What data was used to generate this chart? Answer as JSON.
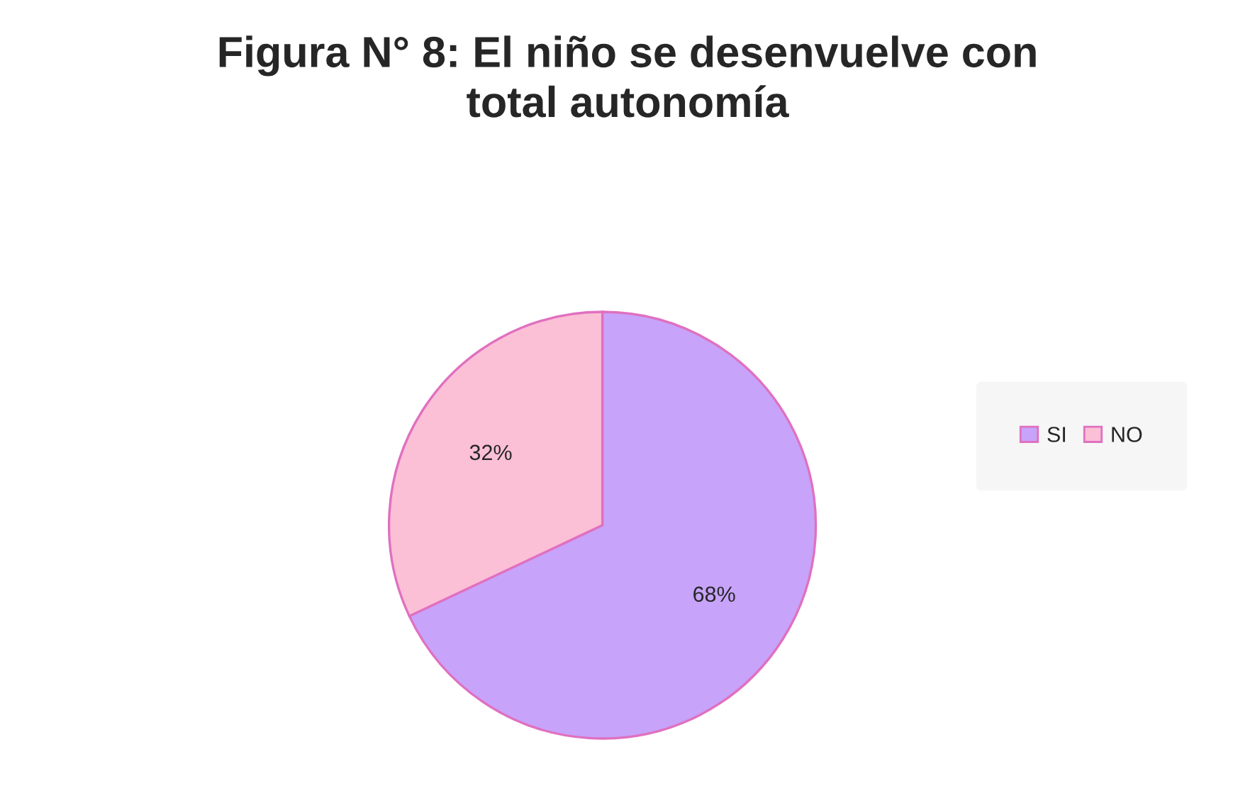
{
  "chart_data": {
    "type": "pie",
    "title": "Figura N° 8: El niño se desenvuelve con\ntotal autonomía",
    "categories": [
      "SI",
      "NO"
    ],
    "values": [
      68,
      32
    ],
    "colors": [
      "#c7a3fa",
      "#fbbfd6"
    ],
    "value_labels": [
      "68%",
      "32%"
    ],
    "legend": "right"
  }
}
